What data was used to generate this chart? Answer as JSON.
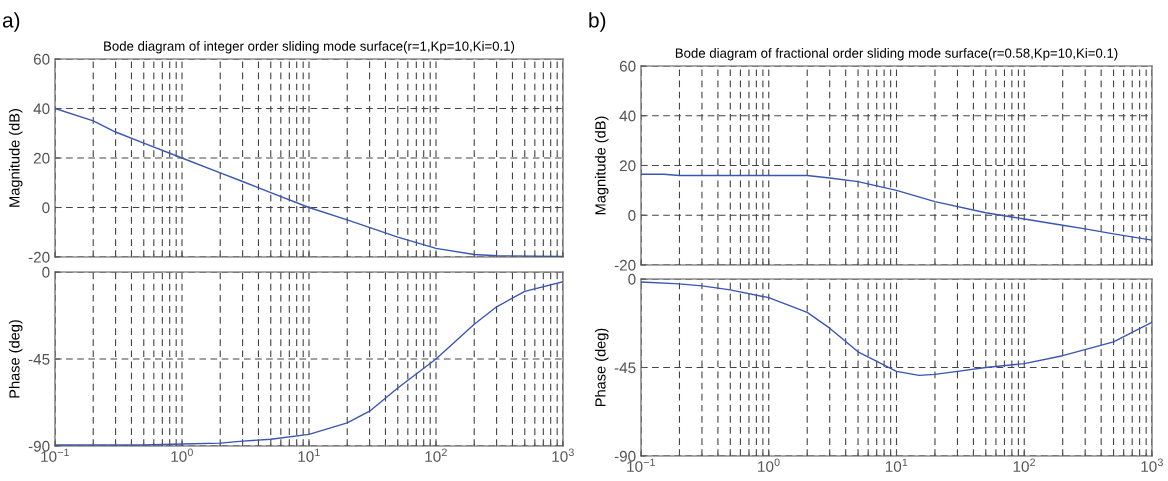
{
  "chart_data": [
    {
      "type": "line",
      "title": "Bode diagram of integer order sliding mode surface(r=1,Kp=10,Ki=0.1)",
      "ylabel": "Magnitude (dB)",
      "annotations": [
        "a)"
      ],
      "x": [
        0.1,
        0.2,
        0.3,
        0.5,
        1,
        2,
        3,
        5,
        10,
        20,
        50,
        100,
        200,
        300,
        1000
      ],
      "series": [
        {
          "color": "#3a55b4",
          "values": [
            40,
            35,
            30.5,
            26,
            20,
            14,
            10.5,
            6,
            0,
            -5,
            -12,
            -16.5,
            -19,
            -19.5,
            -19.8
          ]
        }
      ],
      "xlim": [
        0.1,
        1000
      ],
      "ylim": [
        -20,
        60
      ],
      "yticks": [
        -20,
        0,
        20,
        40,
        60
      ],
      "log": "x",
      "grid": true,
      "tick_labels": "y"
    },
    {
      "type": "line",
      "ylabel": "Phase (deg)",
      "x": [
        0.1,
        0.5,
        1,
        2,
        3,
        5,
        10,
        20,
        30,
        50,
        100,
        200,
        300,
        500,
        1000
      ],
      "series": [
        {
          "color": "#3a55b4",
          "values": [
            -89.5,
            -89.5,
            -89,
            -88.5,
            -87.5,
            -86.5,
            -84,
            -78,
            -72,
            -60,
            -45,
            -27,
            -18,
            -10,
            -5
          ]
        }
      ],
      "xlim": [
        0.1,
        1000
      ],
      "ylim": [
        -90,
        0
      ],
      "yticks": [
        -90,
        -45,
        0
      ],
      "xticks": [
        {
          "value": 0.1,
          "label": "10$^{−1}$"
        },
        {
          "value": 1,
          "label": "10$^{0}$"
        },
        {
          "value": 10,
          "label": "10$^{1}$"
        },
        {
          "value": 100,
          "label": "10$^{2}$"
        },
        {
          "value": 1000,
          "label": "10$^{3}$"
        }
      ],
      "log": "x",
      "grid": true
    },
    {
      "type": "line",
      "title": "Bode diagram of fractional order sliding mode surface(r=0.58,Kp=10,Ki=0.1)",
      "ylabel": "Magnitude (dB)",
      "annotations": [
        "b)"
      ],
      "x": [
        0.1,
        0.15,
        0.2,
        1,
        2,
        3,
        5,
        10,
        20,
        50,
        100,
        200,
        300,
        500,
        1000
      ],
      "series": [
        {
          "color": "#3a55b4",
          "values": [
            16.5,
            16.5,
            16,
            16,
            16,
            15,
            13.5,
            10,
            5.5,
            1,
            -1.5,
            -4,
            -5.5,
            -7.5,
            -10
          ]
        }
      ],
      "xlim": [
        0.1,
        1000
      ],
      "ylim": [
        -20,
        60
      ],
      "yticks": [
        -20,
        0,
        20,
        40,
        60
      ],
      "log": "x",
      "grid": true,
      "tick_labels": "y"
    },
    {
      "type": "line",
      "ylabel": "Phase (deg)",
      "x": [
        0.1,
        0.2,
        0.3,
        0.5,
        1,
        2,
        3,
        5,
        10,
        15,
        20,
        30,
        50,
        100,
        200,
        500,
        1000
      ],
      "series": [
        {
          "color": "#3a55b4",
          "values": [
            -1.5,
            -2.5,
            -3.5,
            -5.5,
            -9.5,
            -17,
            -25,
            -37,
            -47,
            -49,
            -48.5,
            -47,
            -45,
            -43,
            -39,
            -32,
            -22
          ]
        }
      ],
      "xlim": [
        0.1,
        1000
      ],
      "ylim": [
        -90,
        0
      ],
      "yticks": [
        -90,
        -45,
        0
      ],
      "xticks": [
        {
          "value": 0.1,
          "label": "10$^{−1}$"
        },
        {
          "value": 1,
          "label": "10$^{0}$"
        },
        {
          "value": 10,
          "label": "10$^{1}$"
        },
        {
          "value": 100,
          "label": "10$^{2}$"
        },
        {
          "value": 1000,
          "label": "10$^{3}$"
        }
      ],
      "log": "x",
      "grid": true
    }
  ]
}
